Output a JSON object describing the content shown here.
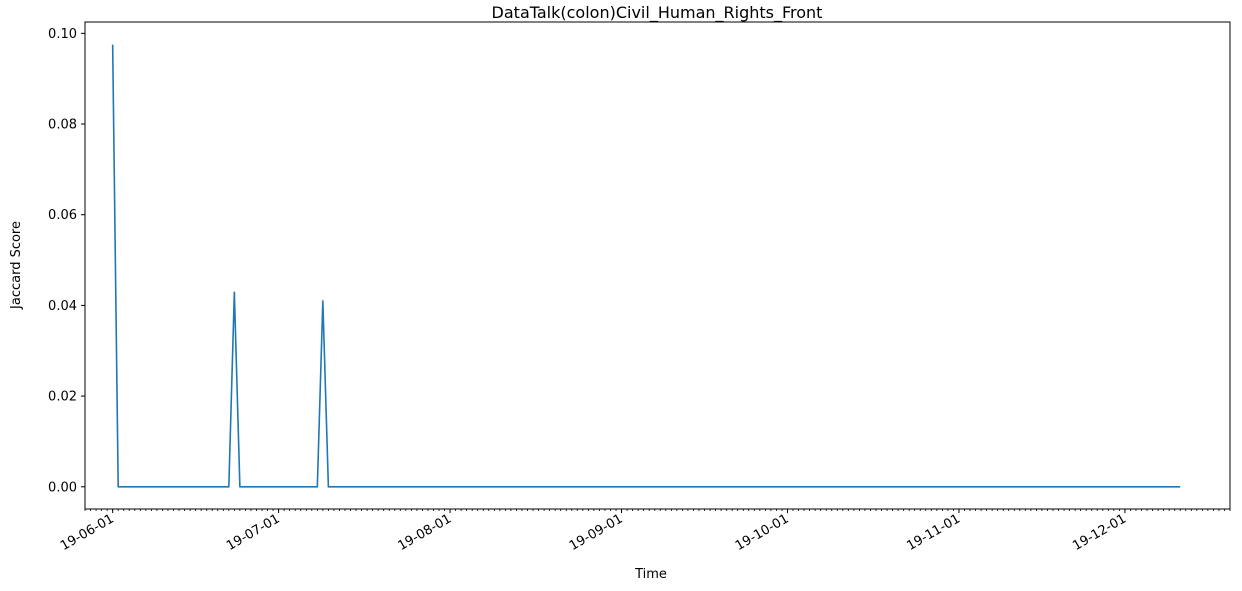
{
  "chart_data": {
    "type": "line",
    "title": "DataTalk(colon)Civil_Human_Rights_Front",
    "xlabel": "Time",
    "ylabel": "Jaccard Score",
    "ylim": [
      -0.0049,
      0.1025
    ],
    "xlim_days": [
      -5,
      202
    ],
    "x_ticks": [
      {
        "day": 0,
        "label": "19-06-01"
      },
      {
        "day": 30,
        "label": "19-07-01"
      },
      {
        "day": 61,
        "label": "19-08-01"
      },
      {
        "day": 92,
        "label": "19-09-01"
      },
      {
        "day": 122,
        "label": "19-10-01"
      },
      {
        "day": 153,
        "label": "19-11-01"
      },
      {
        "day": 183,
        "label": "19-12-01"
      }
    ],
    "y_ticks": [
      {
        "value": 0.0,
        "label": "0.00"
      },
      {
        "value": 0.02,
        "label": "0.02"
      },
      {
        "value": 0.04,
        "label": "0.04"
      },
      {
        "value": 0.06,
        "label": "0.06"
      },
      {
        "value": 0.08,
        "label": "0.08"
      },
      {
        "value": 0.1,
        "label": "0.10"
      }
    ],
    "series": [
      {
        "name": "Jaccard Score",
        "color": "#1f77b4",
        "points": [
          {
            "day": 0,
            "value": 0.0975
          },
          {
            "day": 1,
            "value": 0.0
          },
          {
            "day": 21,
            "value": 0.0
          },
          {
            "day": 22,
            "value": 0.0429
          },
          {
            "day": 23,
            "value": 0.0
          },
          {
            "day": 37,
            "value": 0.0
          },
          {
            "day": 38,
            "value": 0.041
          },
          {
            "day": 39,
            "value": 0.0
          },
          {
            "day": 193,
            "value": 0.0
          }
        ]
      }
    ]
  }
}
